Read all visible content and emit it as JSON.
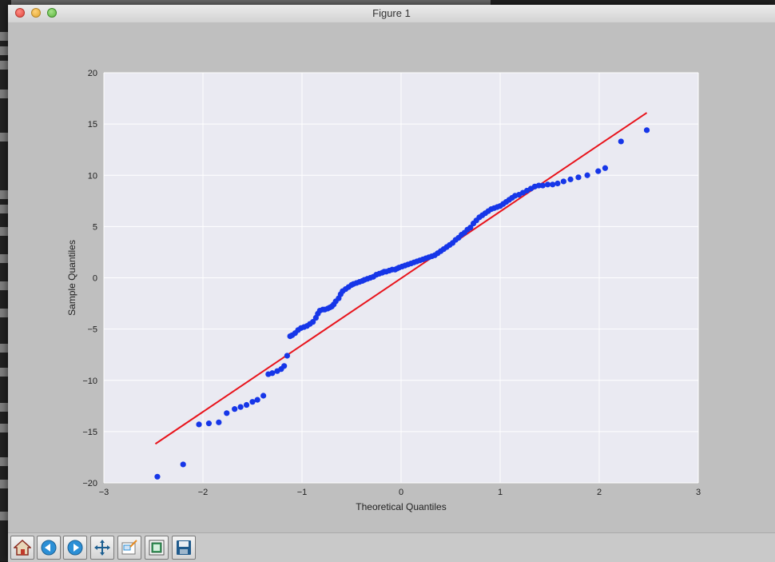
{
  "window": {
    "title": "Figure 1"
  },
  "toolbar": {
    "buttons": [
      {
        "name": "home-icon"
      },
      {
        "name": "back-icon"
      },
      {
        "name": "forward-icon"
      },
      {
        "name": "pan-icon"
      },
      {
        "name": "zoom-icon"
      },
      {
        "name": "configure-subplots-icon"
      },
      {
        "name": "save-icon"
      }
    ]
  },
  "colors": {
    "points": "#1636e8",
    "line": "#e8141c",
    "axes_bg": "#eaeaf2",
    "grid": "#ffffff"
  },
  "chart_data": {
    "type": "scatter",
    "xlabel": "Theoretical Quantiles",
    "ylabel": "Sample Quantiles",
    "xlim": [
      -3,
      3
    ],
    "ylim": [
      -20,
      20
    ],
    "xticks": [
      "−3",
      "−2",
      "−1",
      "0",
      "1",
      "2",
      "3"
    ],
    "xtick_values": [
      -3,
      -2,
      -1,
      0,
      1,
      2,
      3
    ],
    "yticks": [
      "20",
      "15",
      "10",
      "5",
      "0",
      "−5",
      "−10",
      "−15",
      "−20"
    ],
    "ytick_values": [
      20,
      15,
      10,
      5,
      0,
      -5,
      -10,
      -15,
      -20
    ],
    "grid": true,
    "reference_line": {
      "x": [
        -2.48,
        2.48
      ],
      "y": [
        -16.2,
        16.1
      ]
    },
    "points": {
      "x": [
        -2.46,
        -2.2,
        -2.04,
        -1.94,
        -1.84,
        -1.76,
        -1.68,
        -1.62,
        -1.56,
        -1.5,
        -1.45,
        -1.39,
        -1.34,
        -1.3,
        -1.25,
        -1.21,
        -1.18,
        -1.15,
        -1.12,
        -1.1,
        -1.07,
        -1.04,
        -1.01,
        -0.98,
        -0.95,
        -0.92,
        -0.89,
        -0.86,
        -0.84,
        -0.82,
        -0.79,
        -0.77,
        -0.74,
        -0.72,
        -0.7,
        -0.68,
        -0.66,
        -0.63,
        -0.61,
        -0.59,
        -0.56,
        -0.53,
        -0.5,
        -0.48,
        -0.45,
        -0.42,
        -0.39,
        -0.37,
        -0.34,
        -0.31,
        -0.28,
        -0.25,
        -0.22,
        -0.19,
        -0.17,
        -0.15,
        -0.12,
        -0.09,
        -0.06,
        -0.04,
        -0.02,
        0.01,
        0.04,
        0.07,
        0.1,
        0.13,
        0.16,
        0.19,
        0.22,
        0.25,
        0.28,
        0.31,
        0.34,
        0.37,
        0.4,
        0.43,
        0.46,
        0.49,
        0.52,
        0.55,
        0.58,
        0.61,
        0.64,
        0.67,
        0.7,
        0.73,
        0.76,
        0.79,
        0.82,
        0.85,
        0.88,
        0.91,
        0.94,
        0.97,
        1.0,
        1.03,
        1.06,
        1.09,
        1.12,
        1.15,
        1.19,
        1.23,
        1.27,
        1.31,
        1.35,
        1.39,
        1.43,
        1.48,
        1.53,
        1.58,
        1.64,
        1.71,
        1.79,
        1.88,
        1.99,
        2.06,
        2.22,
        2.48
      ],
      "y": [
        -19.4,
        -18.2,
        -14.3,
        -14.2,
        -14.1,
        -13.2,
        -12.8,
        -12.6,
        -12.4,
        -12.1,
        -11.9,
        -11.5,
        -9.4,
        -9.3,
        -9.1,
        -8.9,
        -8.6,
        -7.6,
        -5.7,
        -5.6,
        -5.4,
        -5.1,
        -4.9,
        -4.8,
        -4.7,
        -4.5,
        -4.3,
        -3.9,
        -3.5,
        -3.2,
        -3.1,
        -3.1,
        -3.0,
        -2.9,
        -2.8,
        -2.6,
        -2.3,
        -2.0,
        -1.6,
        -1.3,
        -1.1,
        -0.9,
        -0.7,
        -0.6,
        -0.5,
        -0.4,
        -0.3,
        -0.2,
        -0.1,
        0.0,
        0.1,
        0.3,
        0.4,
        0.5,
        0.6,
        0.6,
        0.7,
        0.8,
        0.8,
        0.9,
        1.0,
        1.1,
        1.2,
        1.3,
        1.4,
        1.5,
        1.6,
        1.7,
        1.8,
        1.9,
        2.0,
        2.1,
        2.2,
        2.4,
        2.6,
        2.8,
        3.0,
        3.2,
        3.4,
        3.7,
        3.9,
        4.2,
        4.4,
        4.7,
        4.9,
        5.3,
        5.6,
        5.9,
        6.1,
        6.3,
        6.5,
        6.7,
        6.8,
        6.9,
        7.0,
        7.2,
        7.4,
        7.6,
        7.8,
        8.0,
        8.1,
        8.3,
        8.5,
        8.7,
        8.9,
        9.0,
        9.0,
        9.1,
        9.1,
        9.2,
        9.4,
        9.6,
        9.8,
        10.0,
        10.4,
        10.7,
        13.3,
        14.4
      ]
    }
  }
}
